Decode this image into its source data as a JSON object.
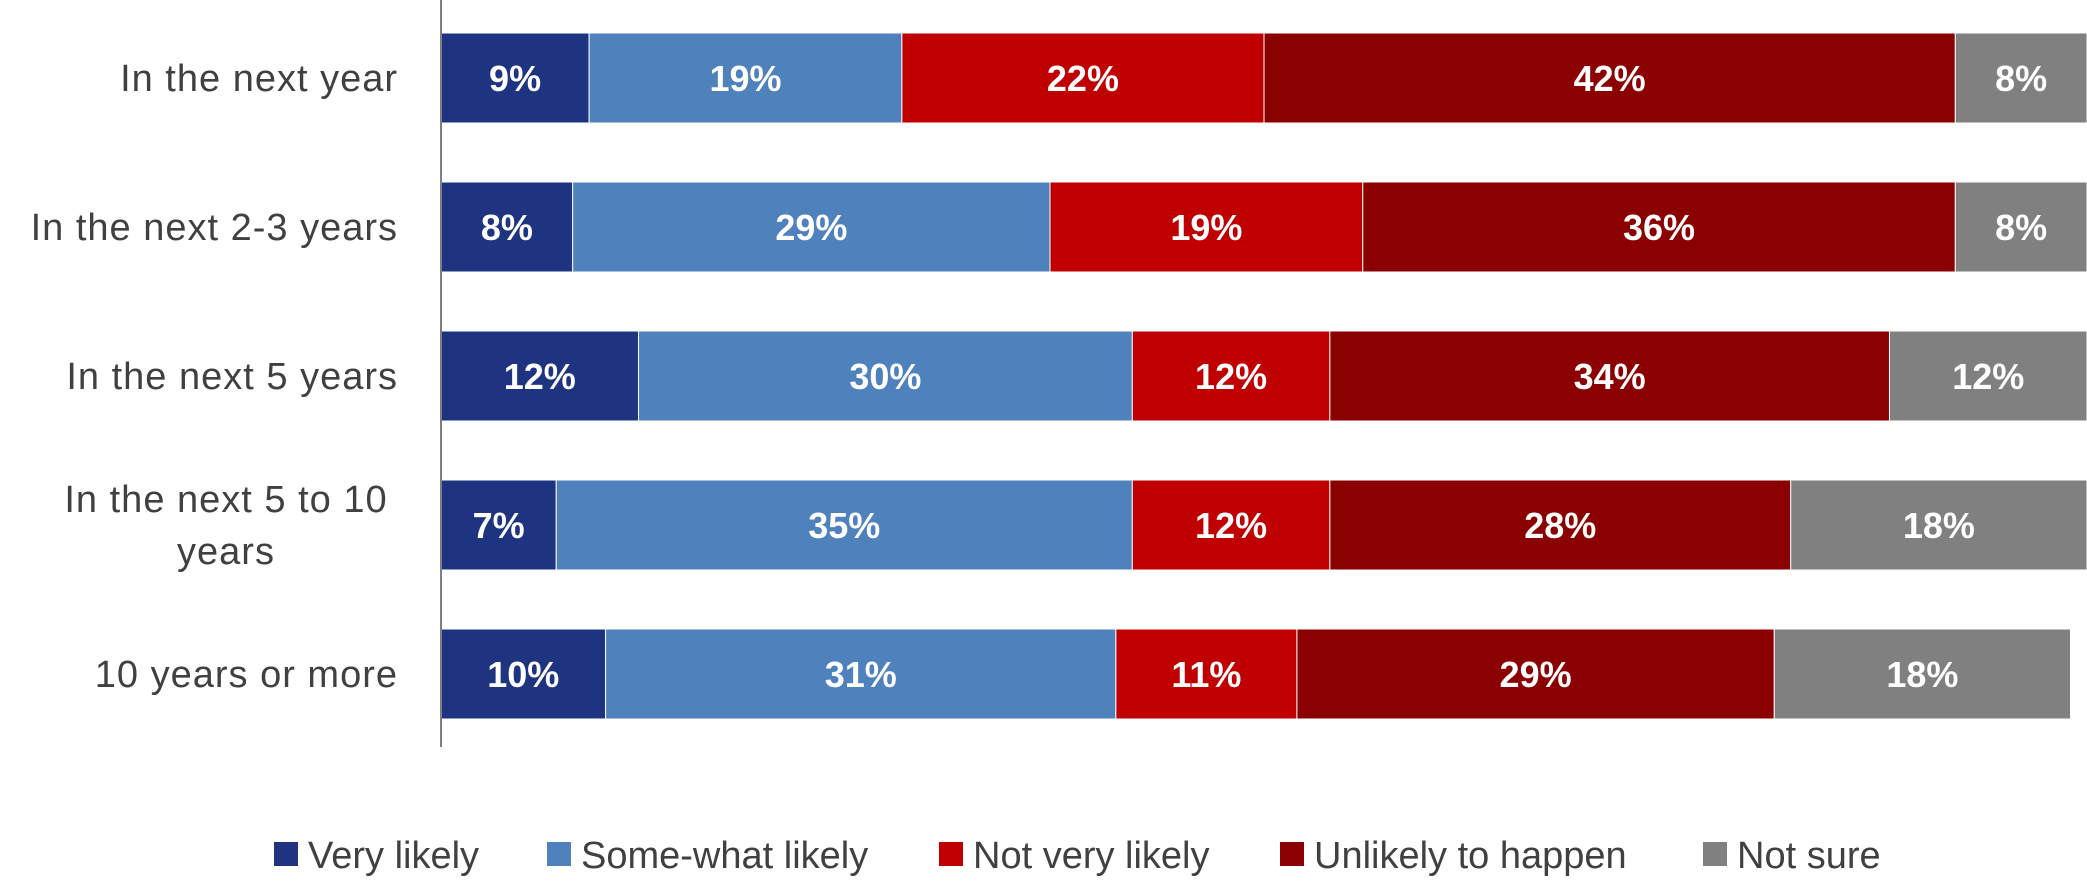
{
  "chart_data": {
    "type": "bar",
    "orientation": "horizontal",
    "stacked": true,
    "categories": [
      "In the next year",
      "In the next 2-3 years",
      "In the next 5 years",
      "In the next 5 to 10 years",
      "10 years or more"
    ],
    "series": [
      {
        "name": "Very likely",
        "color": "#1f3480",
        "values": [
          9,
          8,
          12,
          7,
          10
        ]
      },
      {
        "name": "Some-what likely",
        "color": "#4f81bd",
        "values": [
          19,
          29,
          30,
          35,
          31
        ]
      },
      {
        "name": "Not very likely",
        "color": "#c00000",
        "values": [
          22,
          19,
          12,
          12,
          11
        ]
      },
      {
        "name": "Unlikely to happen",
        "color": "#8b0000",
        "values": [
          42,
          36,
          34,
          28,
          29
        ]
      },
      {
        "name": "Not sure",
        "color": "#808080",
        "values": [
          8,
          8,
          12,
          18,
          18
        ]
      }
    ],
    "value_suffix": "%",
    "xlim": [
      0,
      100
    ],
    "grid": false,
    "legend_position": "bottom"
  }
}
